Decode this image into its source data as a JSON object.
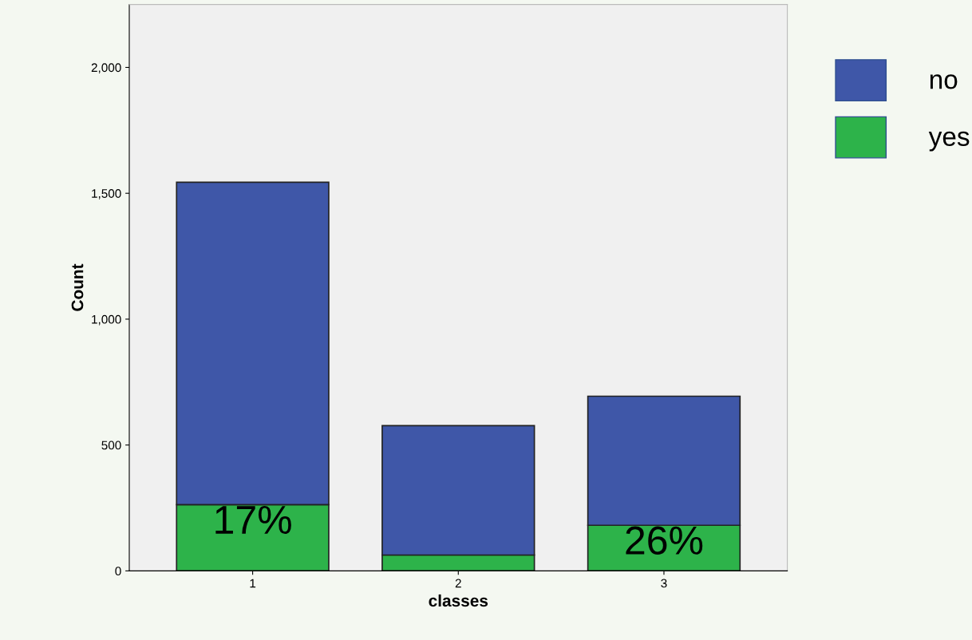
{
  "chart_data": {
    "type": "bar",
    "stacked": true,
    "xlabel": "classes",
    "ylabel": "Count",
    "categories": [
      "1",
      "2",
      "3"
    ],
    "series": [
      {
        "name": "yes",
        "color": "#2db34a",
        "values": [
          263,
          63,
          181
        ]
      },
      {
        "name": "no",
        "color": "#3f57a8",
        "values": [
          1281,
          514,
          513
        ]
      }
    ],
    "ylim": [
      0,
      2250
    ],
    "yticks": [
      0,
      500,
      {
        "value": 1000,
        "label": "1,000"
      },
      {
        "value": 1500,
        "label": "1,500"
      },
      {
        "value": 2000,
        "label": "2,000"
      }
    ],
    "annotations": [
      {
        "text": "17%",
        "x": "1",
        "y": 263
      },
      {
        "text": "26%",
        "x": "3",
        "y": 181
      }
    ],
    "grid": false,
    "legend": "right"
  }
}
